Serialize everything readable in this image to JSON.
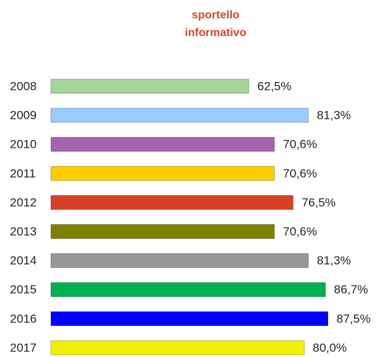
{
  "chart_data": {
    "type": "bar",
    "orientation": "horizontal",
    "title": "sportello informativo",
    "categories": [
      "2008",
      "2009",
      "2010",
      "2011",
      "2012",
      "2013",
      "2014",
      "2015",
      "2016",
      "2017"
    ],
    "values": [
      62.5,
      81.3,
      70.6,
      70.6,
      76.5,
      70.6,
      81.3,
      86.7,
      87.5,
      80.0
    ],
    "value_labels": [
      "62,5%",
      "81,3%",
      "70,6%",
      "70,6%",
      "76,5%",
      "70,6%",
      "81,3%",
      "86,7%",
      "87,5%",
      "80,0%"
    ],
    "colors": [
      "#a6d49a",
      "#99ccff",
      "#a364ab",
      "#ffcc00",
      "#d64027",
      "#808000",
      "#969696",
      "#00b050",
      "#0000ff",
      "#f0f000"
    ]
  }
}
